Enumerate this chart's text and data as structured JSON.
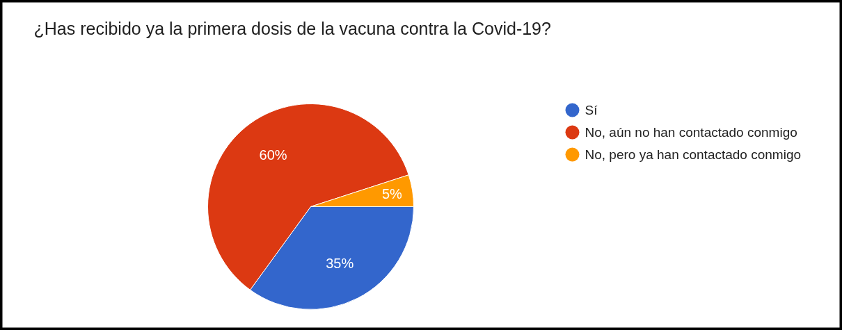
{
  "chart_data": {
    "type": "pie",
    "title": "¿Has recibido ya la primera dosis de la vacuna contra la Covid-19?",
    "categories": [
      "Sí",
      "No, aún no han contactado conmigo",
      "No, pero ya han contactado conmigo"
    ],
    "values": [
      35,
      60,
      5
    ],
    "colors": [
      "#3366cc",
      "#dc3912",
      "#ff9900"
    ],
    "value_labels": [
      "35%",
      "60%",
      "5%"
    ],
    "legend": "right"
  }
}
